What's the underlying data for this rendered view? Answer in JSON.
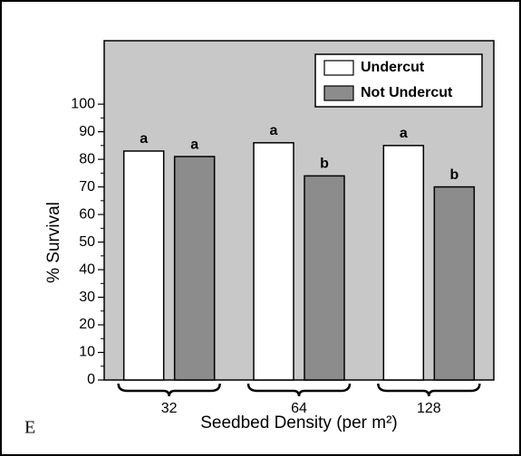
{
  "chart_data": {
    "type": "bar",
    "panel_label": "E",
    "xlabel": "Seedbed Density (per m²)",
    "ylabel": "% Survival",
    "categories": [
      "32",
      "64",
      "128"
    ],
    "series": [
      {
        "name": "Undercut",
        "color": "#ffffff",
        "values": [
          83,
          86,
          85
        ],
        "letters": [
          "a",
          "a",
          "a"
        ]
      },
      {
        "name": "Not Undercut",
        "color": "#8c8c8c",
        "values": [
          81,
          74,
          70
        ],
        "letters": [
          "a",
          "b",
          "b"
        ]
      }
    ],
    "ylim": [
      0,
      123
    ],
    "yticks": [
      0,
      10,
      20,
      30,
      40,
      50,
      60,
      70,
      80,
      90,
      100
    ],
    "yminorticks": [
      5,
      15,
      25,
      35,
      45,
      55,
      65,
      75,
      85,
      95
    ],
    "background": "#c8c8c8",
    "legend": "upper right"
  }
}
